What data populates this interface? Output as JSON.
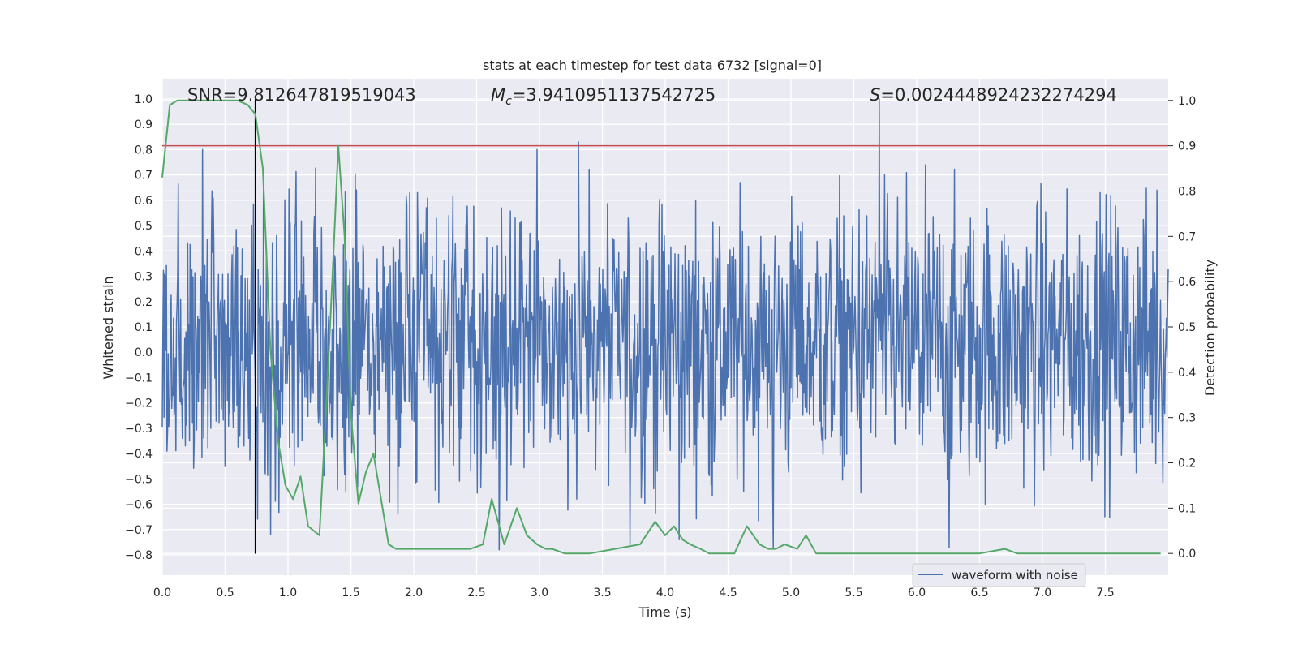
{
  "chart_data": {
    "type": "line",
    "title": "stats at each timestep for test data 6732 [signal=0]",
    "xlabel": "Time (s)",
    "ylabel": "Whitened strain",
    "ylabel_right": "Detection probability",
    "xlim": [
      0,
      8
    ],
    "ylim": [
      -0.88,
      1.08
    ],
    "ylim_right": [
      -0.048,
      1.048
    ],
    "xticks": [
      "0.0",
      "0.5",
      "1.0",
      "1.5",
      "2.0",
      "2.5",
      "3.0",
      "3.5",
      "4.0",
      "4.5",
      "5.0",
      "5.5",
      "6.0",
      "6.5",
      "7.0",
      "7.5"
    ],
    "yticks": [
      "1.0",
      "0.9",
      "0.8",
      "0.7",
      "0.6",
      "0.5",
      "0.4",
      "0.3",
      "0.2",
      "0.1",
      "0.0",
      "−0.1",
      "−0.2",
      "−0.3",
      "−0.4",
      "−0.5",
      "−0.6",
      "−0.7",
      "−0.8"
    ],
    "yticks_right": [
      "1.0",
      "0.9",
      "0.8",
      "0.7",
      "0.6",
      "0.5",
      "0.4",
      "0.3",
      "0.2",
      "0.1",
      "0.0"
    ],
    "grid": true,
    "legend": {
      "position": "bottom-right",
      "entries": [
        "waveform with noise"
      ]
    },
    "annotations": {
      "snr": "SNR=9.812647819519043",
      "mc_prefix": "M",
      "mc_sub": "c",
      "mc_value": "=3.9410951137542725",
      "s_prefix": "S",
      "s_value": "=0.0024448924232274294"
    },
    "threshold_probability": 0.9,
    "marker_time": 0.74,
    "noise_waveform": {
      "name": "waveform with noise",
      "typical_min": -0.55,
      "typical_max": 0.62,
      "peaks": [
        {
          "x": 0.32,
          "y": 0.8
        },
        {
          "x": 2.98,
          "y": 0.8
        },
        {
          "x": 3.31,
          "y": 0.83
        },
        {
          "x": 5.7,
          "y": 1.0
        },
        {
          "x": 7.46,
          "y": 0.63
        },
        {
          "x": 7.91,
          "y": 0.64
        }
      ],
      "troughs": [
        {
          "x": 0.86,
          "y": -0.72
        },
        {
          "x": 2.68,
          "y": -0.78
        },
        {
          "x": 3.72,
          "y": -0.76
        },
        {
          "x": 4.11,
          "y": -0.74
        },
        {
          "x": 4.86,
          "y": -0.77
        },
        {
          "x": 6.26,
          "y": -0.77
        }
      ]
    },
    "series": [
      {
        "name": "",
        "axis": "right",
        "x": [
          0.0,
          0.06,
          0.12,
          0.18,
          0.3,
          0.45,
          0.6,
          0.68,
          0.74,
          0.8,
          0.86,
          0.92,
          0.98,
          1.04,
          1.1,
          1.16,
          1.25,
          1.3,
          1.36,
          1.4,
          1.45,
          1.5,
          1.56,
          1.62,
          1.68,
          1.74,
          1.8,
          1.86,
          1.95,
          2.05,
          2.15,
          2.25,
          2.35,
          2.45,
          2.55,
          2.62,
          2.72,
          2.82,
          2.9,
          2.98,
          3.05,
          3.1,
          3.2,
          3.4,
          3.6,
          3.8,
          3.92,
          4.0,
          4.07,
          4.14,
          4.2,
          4.28,
          4.35,
          4.45,
          4.55,
          4.65,
          4.75,
          4.82,
          4.88,
          4.95,
          5.05,
          5.12,
          5.2,
          5.25,
          5.35,
          5.5,
          5.7,
          5.9,
          6.1,
          6.3,
          6.5,
          6.7,
          6.8,
          6.9,
          7.0,
          7.2,
          7.4,
          7.6,
          7.8,
          7.94
        ],
        "y": [
          0.83,
          0.99,
          1.0,
          1.0,
          1.0,
          1.0,
          1.0,
          0.99,
          0.97,
          0.85,
          0.45,
          0.25,
          0.15,
          0.12,
          0.17,
          0.06,
          0.04,
          0.3,
          0.65,
          0.9,
          0.7,
          0.31,
          0.11,
          0.18,
          0.22,
          0.12,
          0.02,
          0.01,
          0.01,
          0.01,
          0.01,
          0.01,
          0.01,
          0.01,
          0.02,
          0.12,
          0.02,
          0.1,
          0.04,
          0.02,
          0.01,
          0.01,
          0.0,
          0.0,
          0.01,
          0.02,
          0.07,
          0.04,
          0.06,
          0.03,
          0.02,
          0.01,
          0.0,
          0.0,
          0.0,
          0.06,
          0.02,
          0.01,
          0.01,
          0.02,
          0.01,
          0.04,
          0.0,
          0.0,
          0.0,
          0.0,
          0.0,
          0.0,
          0.0,
          0.0,
          0.0,
          0.01,
          0.0,
          0.0,
          0.0,
          0.0,
          0.0,
          0.0,
          0.0,
          0.0
        ]
      }
    ],
    "colors": {
      "waveform": "#4c72b0",
      "probability": "#55a868",
      "threshold": "#c44e52",
      "marker": "#000000",
      "plot_background": "#eaeaf2",
      "grid": "#ffffff"
    }
  }
}
